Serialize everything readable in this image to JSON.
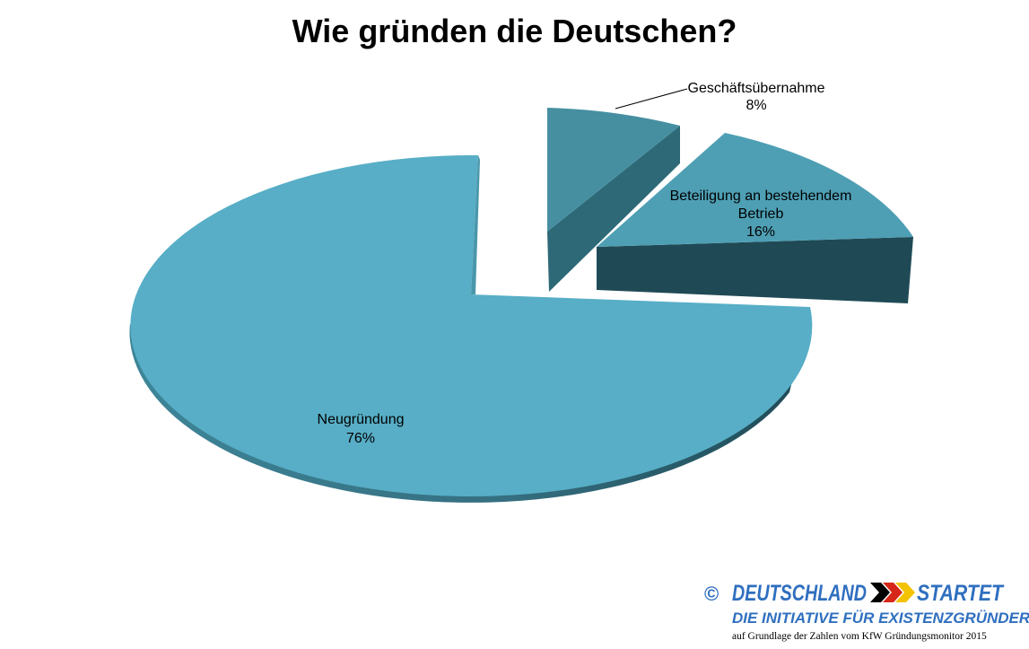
{
  "chart_data": {
    "type": "pie",
    "style": "3d-exploded",
    "title": "Wie gründen die Deutschen?",
    "slices": [
      {
        "label": "Neugründung",
        "value": 76,
        "value_label": "76%",
        "color": "#57aec6"
      },
      {
        "label": "Geschäftsübernahme",
        "value": 8,
        "value_label": "8%",
        "color": "#468fa1"
      },
      {
        "label": "Beteiligung an bestehendem Betrieb",
        "value": 16,
        "value_label": "16%",
        "color": "#4e9fb4"
      }
    ],
    "legend": "none"
  },
  "branding": {
    "copyright": "©",
    "logo_word_1": "DEUTSCHLAND",
    "logo_word_2": "STARTET",
    "tagline": "DIE INITIATIVE FÜR EXISTENZGRÜNDER.",
    "source": "auf Grundlage der Zahlen vom KfW Gründungsmonitor 2015",
    "color": "#2f6fbf"
  }
}
